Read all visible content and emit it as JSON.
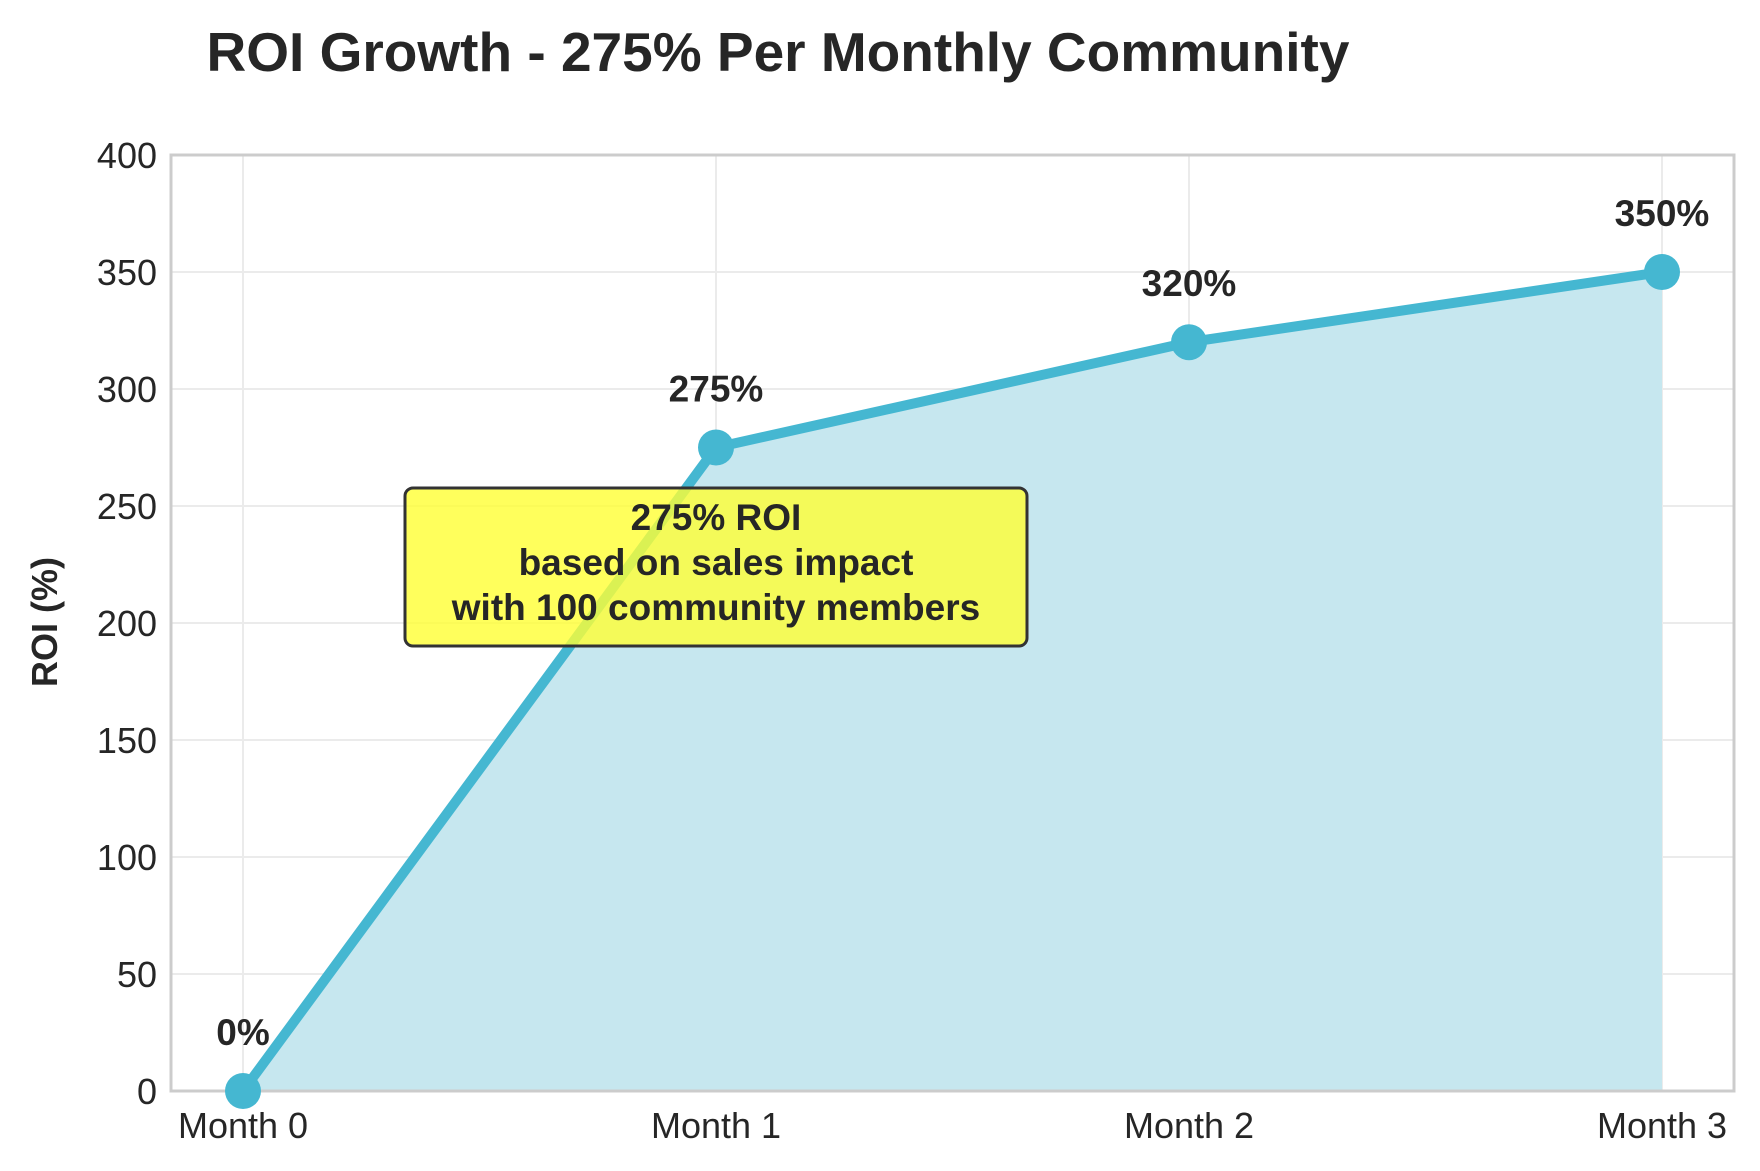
{
  "chart_data": {
    "type": "area",
    "title": "ROI Growth - 275% Per Monthly Community",
    "ylabel": "ROI (%)",
    "xlabel": "",
    "categories": [
      "Month 0",
      "Month 1",
      "Month 2",
      "Month 3"
    ],
    "values": [
      0,
      275,
      320,
      350
    ],
    "data_labels": [
      "0%",
      "275%",
      "320%",
      "350%"
    ],
    "ylim": [
      0,
      400
    ],
    "yticks": [
      0,
      50,
      100,
      150,
      200,
      250,
      300,
      350,
      400
    ],
    "grid": true,
    "annotation": {
      "lines": [
        "275% ROI",
        "based on sales impact",
        "with 100 community members"
      ],
      "background": "#ffff33"
    },
    "colors": {
      "line": "#45b7d1",
      "fill": "#c6e7ef",
      "grid": "#ebebeb",
      "axes": "#cccccc"
    }
  }
}
